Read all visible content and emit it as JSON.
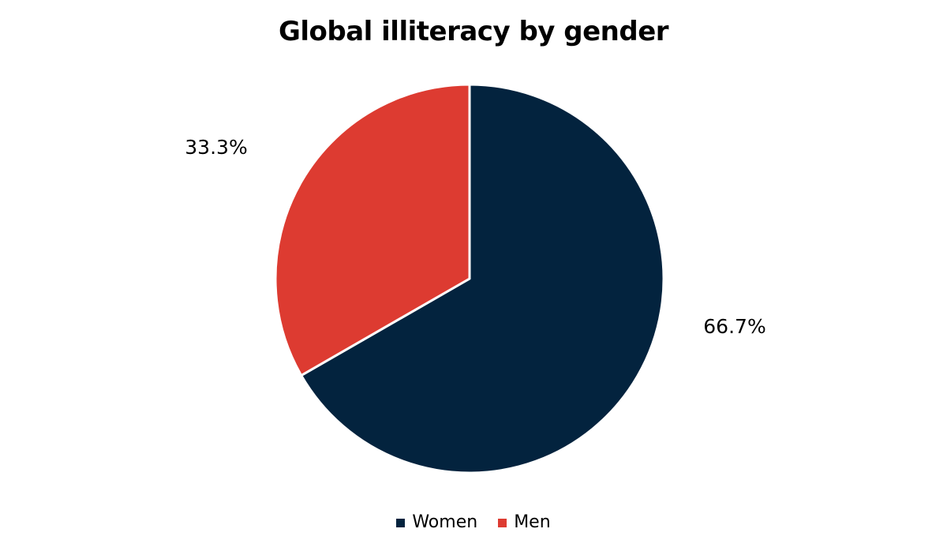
{
  "chart_data": {
    "type": "pie",
    "title": "Global illiteracy by gender",
    "start_angle_deg": 0,
    "direction": "clockwise",
    "legend_position": "bottom",
    "slices": [
      {
        "name": "Women",
        "value": 66.7,
        "label": "66.7%",
        "color": "#03233e"
      },
      {
        "name": "Men",
        "value": 33.3,
        "label": "33.3%",
        "color": "#dd3b31"
      }
    ]
  }
}
